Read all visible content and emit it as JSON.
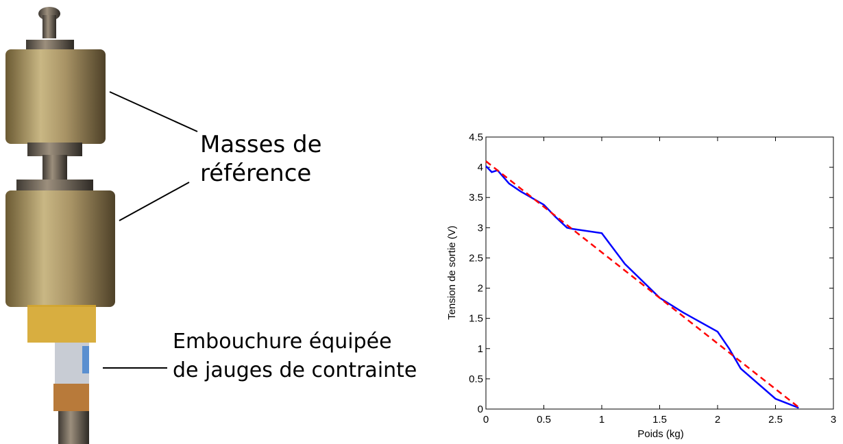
{
  "chart_data": {
    "type": "line",
    "xlabel": "Poids (kg)",
    "ylabel": "Tension de sortie (V)",
    "xlim": [
      0,
      3
    ],
    "ylim": [
      0,
      4.5
    ],
    "xticks": [
      0,
      0.5,
      1,
      1.5,
      2,
      2.5,
      3
    ],
    "yticks": [
      0,
      0.5,
      1,
      1.5,
      2,
      2.5,
      3,
      3.5,
      4,
      4.5
    ],
    "series": [
      {
        "color": "#0000ff",
        "dash": false,
        "x": [
          0,
          0.05,
          0.1,
          0.2,
          0.3,
          0.5,
          0.6,
          0.7,
          0.75,
          1.0,
          1.2,
          1.5,
          1.7,
          2.0,
          2.1,
          2.2,
          2.5,
          2.7
        ],
        "values": [
          4.02,
          3.92,
          3.95,
          3.73,
          3.6,
          3.38,
          3.18,
          3.0,
          2.98,
          2.91,
          2.4,
          1.84,
          1.6,
          1.28,
          1.0,
          0.67,
          0.17,
          0.02
        ]
      },
      {
        "color": "#ff0000",
        "dash": true,
        "x": [
          0,
          2.7
        ],
        "values": [
          4.1,
          0.03
        ]
      }
    ],
    "annotations": [
      {
        "lines": [
          "Masses de",
          "référence"
        ]
      },
      {
        "lines": [
          "Embouchure équipée",
          "de jauges de contrainte"
        ]
      }
    ]
  }
}
